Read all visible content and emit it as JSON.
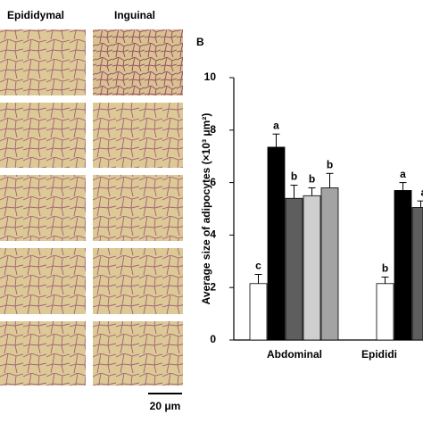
{
  "figure": {
    "panel_label": "B",
    "image_columns": [
      "Epididymal",
      "Inguinal"
    ],
    "scale_bar": "20 μm"
  },
  "chart_data": {
    "type": "bar",
    "ylabel": "Average size of adipocytes (×10³ μm²)",
    "categories": [
      "Abdominal",
      "Epididi"
    ],
    "ylim": [
      0,
      10
    ],
    "yticks": [
      0,
      2,
      4,
      6,
      8,
      10
    ],
    "series": [
      {
        "color": "#ffffff",
        "values": [
          2.15,
          2.15
        ],
        "errors": [
          0.35,
          0.25
        ],
        "letters": [
          "c",
          "b"
        ]
      },
      {
        "color": "#000000",
        "values": [
          7.35,
          5.7
        ],
        "errors": [
          0.5,
          0.3
        ],
        "letters": [
          "a",
          "a"
        ]
      },
      {
        "color": "#5e5e5e",
        "values": [
          5.4,
          5.05
        ],
        "errors": [
          0.5,
          0.25
        ],
        "letters": [
          "b",
          "ab"
        ]
      },
      {
        "color": "#cfcfcf",
        "values": [
          5.5,
          null
        ],
        "errors": [
          0.3,
          null
        ],
        "letters": [
          "b",
          null
        ]
      },
      {
        "color": "#a3a3a3",
        "values": [
          5.8,
          null
        ],
        "errors": [
          0.55,
          null
        ],
        "letters": [
          "b",
          null
        ]
      }
    ]
  }
}
